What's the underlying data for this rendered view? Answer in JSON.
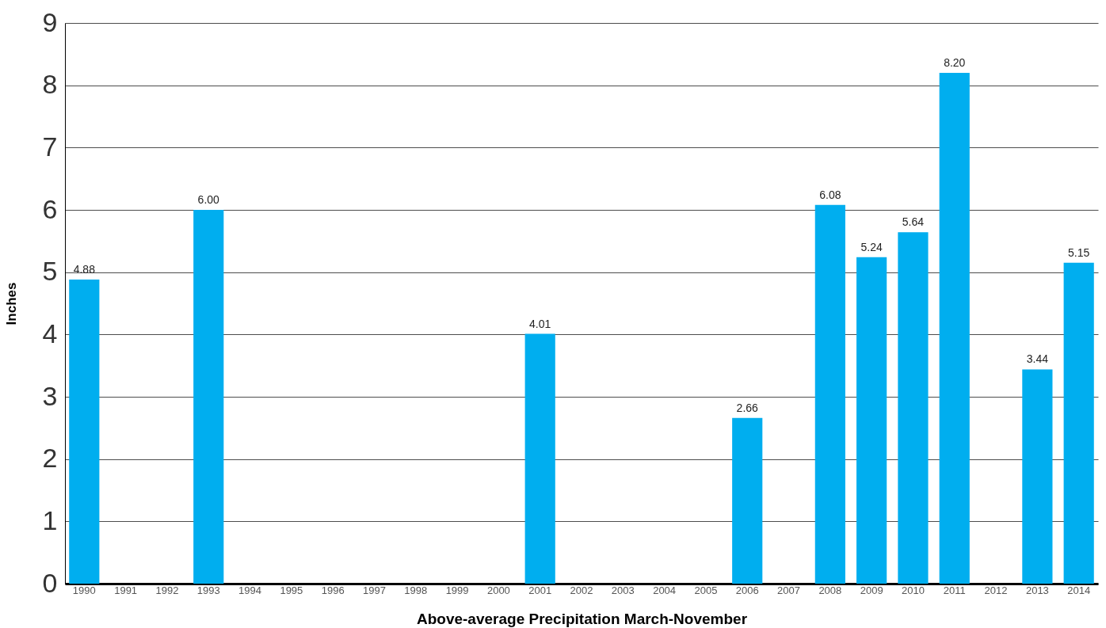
{
  "chart_data": {
    "type": "bar",
    "xlabel": "Above-average Precipitation March-November",
    "ylabel": "Inches",
    "categories": [
      "1990",
      "1991",
      "1992",
      "1993",
      "1994",
      "1995",
      "1996",
      "1997",
      "1998",
      "1999",
      "2000",
      "2001",
      "2002",
      "2003",
      "2004",
      "2005",
      "2006",
      "2007",
      "2008",
      "2009",
      "2010",
      "2011",
      "2012",
      "2013",
      "2014"
    ],
    "values": [
      4.88,
      null,
      null,
      6.0,
      null,
      null,
      null,
      null,
      null,
      null,
      null,
      4.01,
      null,
      null,
      null,
      null,
      2.66,
      null,
      6.08,
      5.24,
      5.64,
      8.2,
      null,
      3.44,
      5.15
    ],
    "value_labels": [
      "4.88",
      null,
      null,
      "6.00",
      null,
      null,
      null,
      null,
      null,
      null,
      null,
      "4.01",
      null,
      null,
      null,
      null,
      "2.66",
      null,
      "6.08",
      "5.24",
      "5.64",
      "8.20",
      null,
      "3.44",
      "5.15"
    ],
    "color": "#00aeef",
    "ylim": [
      0,
      9
    ],
    "yticks": [
      0,
      1,
      2,
      3,
      4,
      5,
      6,
      7,
      8,
      9
    ],
    "grid": "y"
  }
}
